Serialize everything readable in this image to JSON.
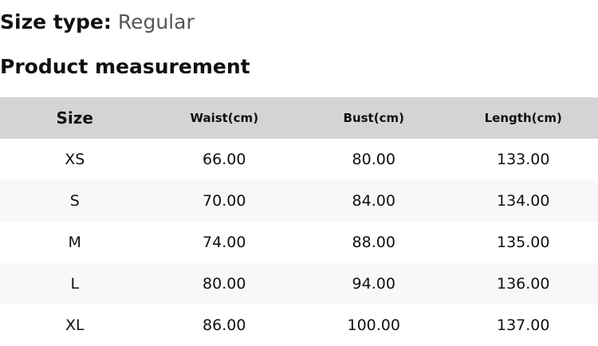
{
  "size_type": {
    "label": "Size type:",
    "value": "Regular"
  },
  "section_title": "Product measurement",
  "table": {
    "headers": [
      "Size",
      "Waist(cm)",
      "Bust(cm)",
      "Length(cm)"
    ],
    "rows": [
      [
        "XS",
        "66.00",
        "80.00",
        "133.00"
      ],
      [
        "S",
        "70.00",
        "84.00",
        "134.00"
      ],
      [
        "M",
        "74.00",
        "88.00",
        "135.00"
      ],
      [
        "L",
        "80.00",
        "94.00",
        "136.00"
      ],
      [
        "XL",
        "86.00",
        "100.00",
        "137.00"
      ]
    ]
  }
}
